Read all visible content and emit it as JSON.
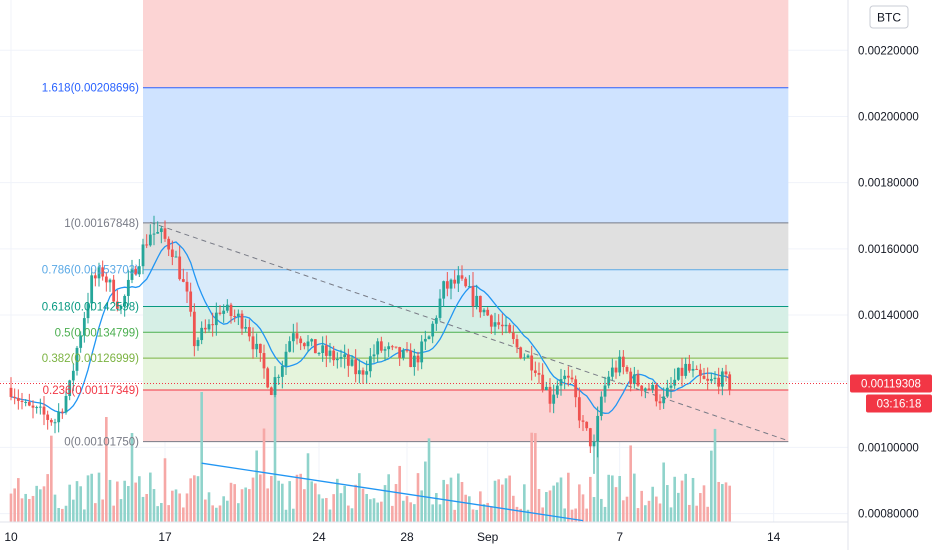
{
  "currency_badge": "BTC",
  "chart_data": {
    "type": "candlestick",
    "y_axis": {
      "ticks": [
        0.0008,
        0.001,
        0.0012,
        0.0014,
        0.0016,
        0.0018,
        0.002,
        0.0022
      ],
      "tick_labels": [
        "0.00080000",
        "0.00100000",
        "0.00120000",
        "0.00140000",
        "0.00160000",
        "0.00180000",
        "0.00200000",
        "0.00220000"
      ],
      "range": [
        0.00069,
        0.002352
      ]
    },
    "x_axis": {
      "ticks": [
        {
          "label": "10",
          "index": 0
        },
        {
          "label": "17",
          "index": 42
        },
        {
          "label": "24",
          "index": 84
        },
        {
          "label": "28",
          "index": 108
        },
        {
          "label": "Sep",
          "index": 130
        },
        {
          "label": "7",
          "index": 166
        },
        {
          "label": "14",
          "index": 208
        }
      ]
    },
    "last_price": {
      "value": 0.00119308,
      "label": "0.00119308",
      "countdown": "03:16:18",
      "color": "#f23645"
    },
    "fibonacci": {
      "start_index": 36,
      "end_index": 212,
      "levels": [
        {
          "ratio_label": "1.618",
          "value": 0.00208696,
          "label": "1.618(0.00208696)",
          "color": "#2962ff",
          "fill": "#cfe3ff"
        },
        {
          "ratio_label": "1",
          "value": 0.00167848,
          "label": "1(0.00167848)",
          "color": "#787b86",
          "fill": "#e0e0e0"
        },
        {
          "ratio_label": "0.786",
          "value": 0.00153703,
          "label": "0.786(0.00153703)",
          "color": "#5aa9e6",
          "fill": "#d9ebfb"
        },
        {
          "ratio_label": "0.618",
          "value": 0.00142598,
          "label": "0.618(0.00142598)",
          "color": "#089981",
          "fill": "#d6efe6"
        },
        {
          "ratio_label": "0.5",
          "value": 0.00134799,
          "label": "0.5(0.00134799)",
          "color": "#4caf50",
          "fill": "#dff2dd"
        },
        {
          "ratio_label": "0.382",
          "value": 0.00126999,
          "label": "0.382(0.00126999)",
          "color": "#7cb342",
          "fill": "#e5f4dc"
        },
        {
          "ratio_label": "0.236",
          "value": 0.00117349,
          "label": "0.236(0.00117349)",
          "color": "#f23645",
          "fill": "#fcd4d4"
        },
        {
          "ratio_label": "0",
          "value": 0.0010175,
          "label": "0(0.00101750)",
          "color": "#787b86",
          "fill": "#fcd4d4"
        }
      ],
      "top_zone_fill": "#fcd4d4"
    },
    "trendline": {
      "x0": 38,
      "y0": 0.00168,
      "x1": 212,
      "y1": 0.00102,
      "style": "dashed",
      "color": "#787b86"
    },
    "volume_trendline": {
      "x0": 52,
      "y0": 0.84,
      "x1": 156,
      "y1": 0.02,
      "color": "#2196f3"
    },
    "colors": {
      "up": "#26a69a",
      "down": "#ef5350",
      "ma": "#2196f3",
      "vol_up": "#8fd3cb",
      "vol_down": "#f6a8a6"
    },
    "anchors": [
      [
        0,
        0.00118
      ],
      [
        4,
        0.00112
      ],
      [
        8,
        0.0011
      ],
      [
        12,
        0.00108
      ],
      [
        16,
        0.00118
      ],
      [
        18,
        0.0013
      ],
      [
        22,
        0.0015
      ],
      [
        25,
        0.00153
      ],
      [
        30,
        0.00142
      ],
      [
        34,
        0.00155
      ],
      [
        38,
        0.00165
      ],
      [
        41,
        0.00164
      ],
      [
        44,
        0.0016
      ],
      [
        46,
        0.00153
      ],
      [
        48,
        0.00145
      ],
      [
        50,
        0.00132
      ],
      [
        54,
        0.00136
      ],
      [
        57,
        0.00142
      ],
      [
        60,
        0.0014
      ],
      [
        64,
        0.00138
      ],
      [
        68,
        0.00126
      ],
      [
        71,
        0.00118
      ],
      [
        74,
        0.00126
      ],
      [
        77,
        0.00136
      ],
      [
        82,
        0.0013
      ],
      [
        86,
        0.00128
      ],
      [
        91,
        0.00126
      ],
      [
        95,
        0.00122
      ],
      [
        100,
        0.0013
      ],
      [
        105,
        0.00128
      ],
      [
        110,
        0.00126
      ],
      [
        114,
        0.00133
      ],
      [
        118,
        0.00148
      ],
      [
        122,
        0.0015
      ],
      [
        126,
        0.00145
      ],
      [
        130,
        0.0014
      ],
      [
        134,
        0.00136
      ],
      [
        138,
        0.0013
      ],
      [
        143,
        0.00125
      ],
      [
        147,
        0.00115
      ],
      [
        150,
        0.00122
      ],
      [
        153,
        0.00118
      ],
      [
        156,
        0.00106
      ],
      [
        159,
        0.001
      ],
      [
        161,
        0.00115
      ],
      [
        163,
        0.00122
      ],
      [
        166,
        0.00125
      ],
      [
        170,
        0.0012
      ],
      [
        174,
        0.00118
      ],
      [
        178,
        0.00114
      ],
      [
        181,
        0.0012
      ],
      [
        184,
        0.00124
      ],
      [
        187,
        0.00121
      ],
      [
        190,
        0.00119
      ],
      [
        193,
        0.00121
      ],
      [
        196,
        0.00119
      ]
    ],
    "n_candles": 197
  }
}
